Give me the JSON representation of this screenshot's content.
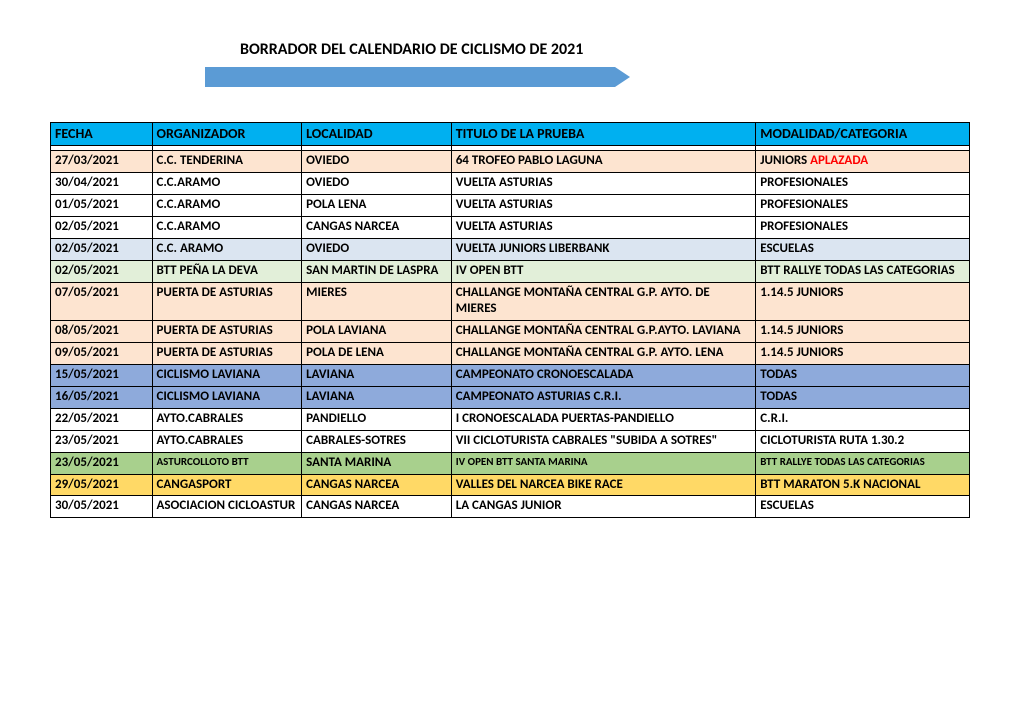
{
  "title": "BORRADOR DEL CALENDARIO DE CICLISMO DE 2021",
  "colors": {
    "header_bg": "#00b0f0",
    "arrow": "#5b9bd5",
    "row_blank": "#ffffff",
    "row_lightorange": "#fde4d0",
    "row_lightblue": "#dbe5f1",
    "row_lightgreen": "#e2efd9",
    "row_blue": "#8eaadb",
    "row_green": "#a8d08d",
    "row_yellow": "#ffd966",
    "red_text": "#ff0000"
  },
  "columns": [
    "FECHA",
    "ORGANIZADOR",
    "LOCALIDAD",
    "TITULO DE LA PRUEBA",
    "MODALIDAD/CATEGORIA"
  ],
  "rows": [
    {
      "bg": "#ffffff",
      "cells": [
        "",
        "",
        "",
        "",
        ""
      ]
    },
    {
      "bg": "#fde4d0",
      "cells": [
        "27/03/2021",
        "C.C. TENDERINA",
        "OVIEDO",
        "64 TROFEO PABLO LAGUNA",
        "JUNIORS "
      ],
      "extra_red": "APLAZADA"
    },
    {
      "bg": "#ffffff",
      "cells": [
        "30/04/2021",
        "C.C.ARAMO",
        "OVIEDO",
        "VUELTA ASTURIAS",
        "PROFESIONALES"
      ]
    },
    {
      "bg": "#ffffff",
      "cells": [
        "01/05/2021",
        "C.C.ARAMO",
        "POLA LENA",
        "VUELTA ASTURIAS",
        "PROFESIONALES"
      ]
    },
    {
      "bg": "#ffffff",
      "cells": [
        "02/05/2021",
        "C.C.ARAMO",
        "CANGAS NARCEA",
        "VUELTA ASTURIAS",
        "PROFESIONALES"
      ]
    },
    {
      "bg": "#dbe5f1",
      "cells": [
        "02/05/2021",
        "C.C. ARAMO",
        "OVIEDO",
        "VUELTA JUNIORS LIBERBANK",
        "ESCUELAS"
      ]
    },
    {
      "bg": "#e2efd9",
      "cells": [
        "02/05/2021",
        "BTT PEÑA LA DEVA",
        "SAN MARTIN DE LASPRA",
        "IV OPEN BTT",
        "BTT RALLYE TODAS LAS CATEGORIAS"
      ]
    },
    {
      "bg": "#fde4d0",
      "cells": [
        "07/05/2021",
        "PUERTA DE ASTURIAS",
        "MIERES",
        "CHALLANGE MONTAÑA CENTRAL G.P. AYTO. DE MIERES",
        "1.14.5 JUNIORS"
      ]
    },
    {
      "bg": "#fde4d0",
      "cells": [
        "08/05/2021",
        "PUERTA DE ASTURIAS",
        "POLA LAVIANA",
        "CHALLANGE MONTAÑA CENTRAL G.P.AYTO. LAVIANA",
        "1.14.5 JUNIORS"
      ]
    },
    {
      "bg": "#fde4d0",
      "cells": [
        "09/05/2021",
        "PUERTA DE ASTURIAS",
        "POLA DE LENA",
        "CHALLANGE MONTAÑA CENTRAL G.P. AYTO. LENA",
        "1.14.5 JUNIORS"
      ]
    },
    {
      "bg": "#8eaadb",
      "cells": [
        "15/05/2021",
        "CICLISMO LAVIANA",
        "LAVIANA",
        "CAMPEONATO CRONOESCALADA",
        "TODAS"
      ]
    },
    {
      "bg": "#8eaadb",
      "cells": [
        "16/05/2021",
        "CICLISMO LAVIANA",
        "LAVIANA",
        "CAMPEONATO ASTURIAS C.R.I.",
        "TODAS"
      ]
    },
    {
      "bg": "#ffffff",
      "cells": [
        "22/05/2021",
        "AYTO.CABRALES",
        "PANDIELLO",
        "I CRONOESCALADA PUERTAS-PANDIELLO",
        "C.R.I."
      ]
    },
    {
      "bg": "#ffffff",
      "cells": [
        "23/05/2021",
        "AYTO.CABRALES",
        "CABRALES-SOTRES",
        "VII CICLOTURISTA CABRALES \"SUBIDA A SOTRES\"",
        "CICLOTURISTA RUTA 1.30.2"
      ]
    },
    {
      "bg": "#a8d08d",
      "cells": [
        "23/05/2021",
        "ASTURCOLLOTO BTT",
        "SANTA MARINA",
        "IV OPEN BTT SANTA MARINA",
        "BTT RALLYE TODAS LAS CATEGORIAS"
      ],
      "small_cols": [
        1,
        3,
        4
      ]
    },
    {
      "bg": "#ffd966",
      "cells": [
        "29/05/2021",
        "CANGASPORT",
        "CANGAS NARCEA",
        "VALLES DEL NARCEA BIKE RACE",
        "BTT MARATON 5.K NACIONAL"
      ]
    },
    {
      "bg": "#ffffff",
      "cells": [
        "30/05/2021",
        "ASOCIACION CICLOASTUR",
        "CANGAS NARCEA",
        "LA CANGAS JUNIOR",
        "ESCUELAS"
      ]
    }
  ]
}
